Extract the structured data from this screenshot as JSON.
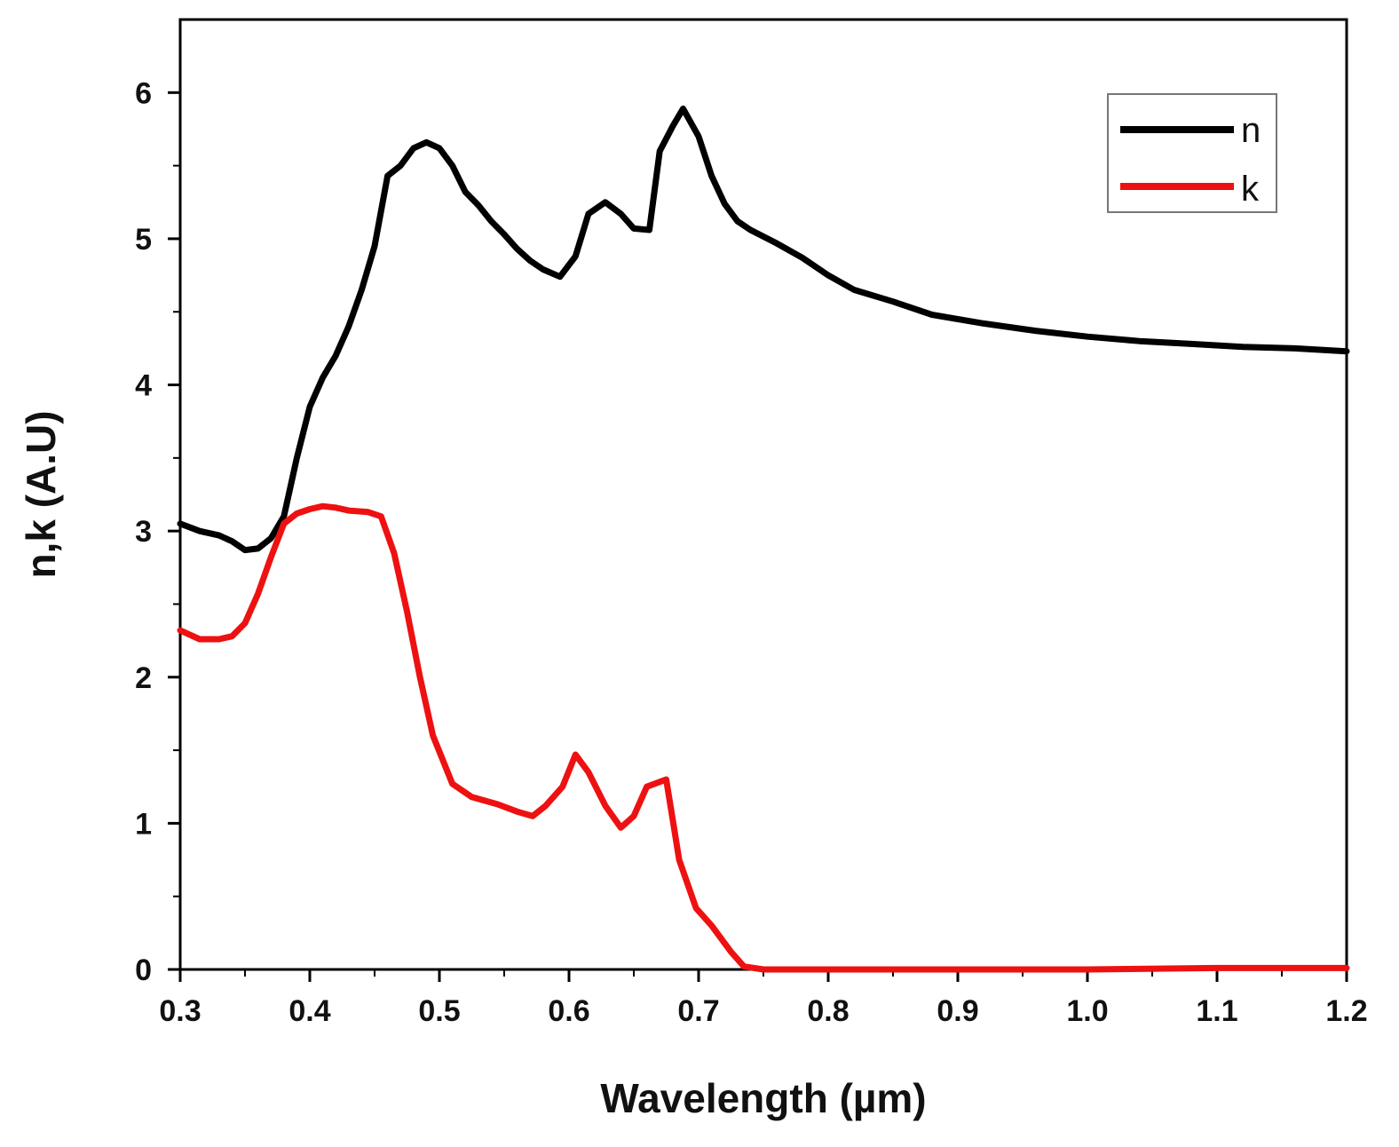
{
  "chart_data": {
    "type": "line",
    "xlabel": "Wavelength (µm)",
    "ylabel": "n,k (A.U)",
    "xlim": [
      0.3,
      1.2
    ],
    "ylim": [
      0,
      6.5
    ],
    "x_ticks": [
      "0.3",
      "0.4",
      "0.5",
      "0.6",
      "0.7",
      "0.8",
      "0.9",
      "1.0",
      "1.1",
      "1.2"
    ],
    "y_ticks": [
      "0",
      "1",
      "2",
      "3",
      "4",
      "5",
      "6"
    ],
    "grid": false,
    "legend_position": "top-right",
    "series": [
      {
        "name": "n",
        "color": "#000000",
        "points": [
          [
            0.3,
            3.05
          ],
          [
            0.315,
            3.0
          ],
          [
            0.33,
            2.97
          ],
          [
            0.34,
            2.93
          ],
          [
            0.35,
            2.87
          ],
          [
            0.36,
            2.88
          ],
          [
            0.37,
            2.95
          ],
          [
            0.38,
            3.1
          ],
          [
            0.39,
            3.5
          ],
          [
            0.4,
            3.85
          ],
          [
            0.41,
            4.05
          ],
          [
            0.42,
            4.2
          ],
          [
            0.43,
            4.4
          ],
          [
            0.44,
            4.65
          ],
          [
            0.45,
            4.95
          ],
          [
            0.46,
            5.43
          ],
          [
            0.47,
            5.5
          ],
          [
            0.48,
            5.62
          ],
          [
            0.49,
            5.66
          ],
          [
            0.5,
            5.62
          ],
          [
            0.51,
            5.5
          ],
          [
            0.52,
            5.32
          ],
          [
            0.53,
            5.23
          ],
          [
            0.54,
            5.12
          ],
          [
            0.55,
            5.03
          ],
          [
            0.56,
            4.93
          ],
          [
            0.57,
            4.85
          ],
          [
            0.58,
            4.79
          ],
          [
            0.593,
            4.74
          ],
          [
            0.605,
            4.88
          ],
          [
            0.615,
            5.17
          ],
          [
            0.628,
            5.25
          ],
          [
            0.64,
            5.17
          ],
          [
            0.65,
            5.07
          ],
          [
            0.662,
            5.06
          ],
          [
            0.67,
            5.6
          ],
          [
            0.68,
            5.77
          ],
          [
            0.688,
            5.89
          ],
          [
            0.7,
            5.7
          ],
          [
            0.71,
            5.43
          ],
          [
            0.72,
            5.24
          ],
          [
            0.73,
            5.12
          ],
          [
            0.74,
            5.06
          ],
          [
            0.76,
            4.97
          ],
          [
            0.78,
            4.87
          ],
          [
            0.8,
            4.75
          ],
          [
            0.82,
            4.65
          ],
          [
            0.85,
            4.57
          ],
          [
            0.88,
            4.48
          ],
          [
            0.92,
            4.42
          ],
          [
            0.96,
            4.37
          ],
          [
            1.0,
            4.33
          ],
          [
            1.04,
            4.3
          ],
          [
            1.08,
            4.28
          ],
          [
            1.12,
            4.26
          ],
          [
            1.16,
            4.25
          ],
          [
            1.2,
            4.23
          ]
        ]
      },
      {
        "name": "k",
        "color": "#ee1111",
        "points": [
          [
            0.3,
            2.32
          ],
          [
            0.315,
            2.26
          ],
          [
            0.33,
            2.26
          ],
          [
            0.34,
            2.28
          ],
          [
            0.35,
            2.37
          ],
          [
            0.36,
            2.57
          ],
          [
            0.37,
            2.82
          ],
          [
            0.38,
            3.05
          ],
          [
            0.39,
            3.12
          ],
          [
            0.4,
            3.15
          ],
          [
            0.41,
            3.17
          ],
          [
            0.42,
            3.16
          ],
          [
            0.43,
            3.14
          ],
          [
            0.445,
            3.13
          ],
          [
            0.455,
            3.1
          ],
          [
            0.465,
            2.85
          ],
          [
            0.475,
            2.45
          ],
          [
            0.485,
            2.0
          ],
          [
            0.495,
            1.6
          ],
          [
            0.51,
            1.27
          ],
          [
            0.525,
            1.18
          ],
          [
            0.545,
            1.13
          ],
          [
            0.56,
            1.08
          ],
          [
            0.572,
            1.05
          ],
          [
            0.582,
            1.12
          ],
          [
            0.595,
            1.25
          ],
          [
            0.605,
            1.47
          ],
          [
            0.615,
            1.35
          ],
          [
            0.628,
            1.12
          ],
          [
            0.64,
            0.97
          ],
          [
            0.65,
            1.05
          ],
          [
            0.66,
            1.25
          ],
          [
            0.675,
            1.3
          ],
          [
            0.685,
            0.75
          ],
          [
            0.698,
            0.42
          ],
          [
            0.71,
            0.3
          ],
          [
            0.725,
            0.12
          ],
          [
            0.735,
            0.02
          ],
          [
            0.75,
            0.0
          ],
          [
            0.8,
            0.0
          ],
          [
            0.9,
            0.0
          ],
          [
            1.0,
            0.0
          ],
          [
            1.1,
            0.01
          ],
          [
            1.2,
            0.01
          ]
        ]
      }
    ]
  }
}
